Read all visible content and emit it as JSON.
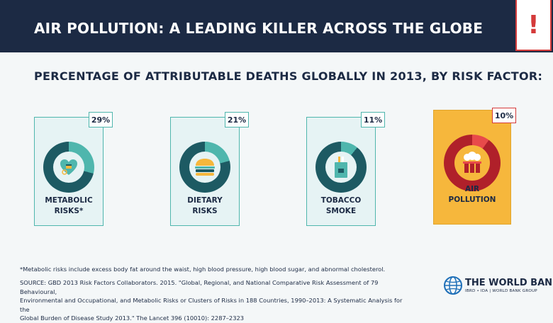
{
  "header": {
    "title": "AIR POLLUTION: A LEADING KILLER ACROSS THE GLOBE",
    "alert_symbol": "!"
  },
  "subtitle": "PERCENTAGE OF ATTRIBUTABLE DEATHS GLOBALLY IN 2013, BY RISK FACTOR:",
  "cards": [
    {
      "label_line1": "METABOLIC",
      "label_line2": "RISKS*",
      "percent_label": "29%",
      "percent": 29,
      "icon": "heart-icon"
    },
    {
      "label_line1": "DIETARY",
      "label_line2": "RISKS",
      "percent_label": "21%",
      "percent": 21,
      "icon": "burger-icon"
    },
    {
      "label_line1": "TOBACCO",
      "label_line2": "SMOKE",
      "percent_label": "11%",
      "percent": 11,
      "icon": "cigarette-pack-icon"
    },
    {
      "label_line1": "AIR",
      "label_line2": "POLLUTION",
      "percent_label": "10%",
      "percent": 10,
      "icon": "factory-smoke-icon"
    }
  ],
  "colors": {
    "navy": "#1c2a44",
    "teal": "#4fb6ad",
    "donut_dark": "#1d5a63",
    "air_card": "#f6b73c",
    "air_dark": "#b0202a",
    "air_accent": "#e84a4a",
    "alert_red": "#d43a3a"
  },
  "footnote": "*Metabolic risks include excess body fat around the waist, high blood pressure, high blood sugar, and abnormal cholesterol.",
  "source": {
    "line1": "SOURCE: GBD 2013 Risk Factors Collaborators. 2015. \"Global, Regional, and National Comparative Risk Assessment of 79 Behavioural,",
    "line2": "Environmental and Occupational, and Metabolic Risks or Clusters of Risks in 188 Countries, 1990–2013: A Systematic Analysis for the",
    "line3": "Global Burden of Disease Study 2013.\" The Lancet 396 (10010): 2287–2323"
  },
  "logo": {
    "name": "THE WORLD BANK",
    "sub": "IBRD • IDA | WORLD BANK GROUP",
    "icon": "globe-icon"
  }
}
